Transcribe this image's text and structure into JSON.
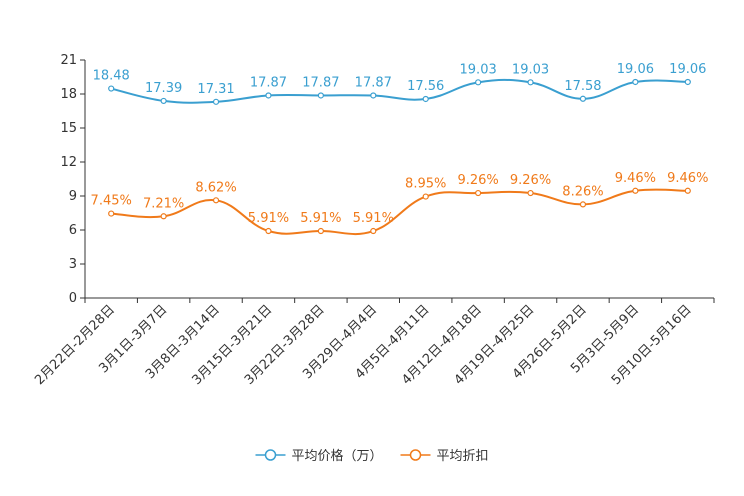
{
  "chart_data": {
    "type": "line",
    "title": "",
    "xlabel": "",
    "ylabel": "",
    "ylim": [
      0,
      21
    ],
    "yticks": [
      0,
      3,
      6,
      9,
      12,
      15,
      18,
      21
    ],
    "ytick_labels": [
      "0",
      "3",
      "6",
      "9",
      "12",
      "15",
      "18",
      "21"
    ],
    "grid": false,
    "legend_position": "bottom-center",
    "categories": [
      "2月22日-2月28日",
      "3月1日-3月7日",
      "3月8日-3月14日",
      "3月15日-3月21日",
      "3月22日-3月28日",
      "3月29日-4月4日",
      "4月5日-4月11日",
      "4月12日-4月18日",
      "4月19日-4月25日",
      "4月26日-5月2日",
      "5月3日-5月9日",
      "5月10日-5月16日"
    ],
    "series": [
      {
        "name": "平均价格（万）",
        "color": "#3a9fd0",
        "values": [
          18.48,
          17.39,
          17.31,
          17.87,
          17.87,
          17.87,
          17.56,
          19.03,
          19.03,
          17.58,
          19.06,
          19.06
        ],
        "labels": [
          "18.48",
          "17.39",
          "17.31",
          "17.87",
          "17.87",
          "17.87",
          "17.56",
          "19.03",
          "19.03",
          "17.58",
          "19.06",
          "19.06"
        ]
      },
      {
        "name": "平均折扣",
        "color": "#f07a1a",
        "values": [
          7.45,
          7.21,
          8.62,
          5.91,
          5.91,
          5.91,
          8.95,
          9.26,
          9.26,
          8.26,
          9.46,
          9.46
        ],
        "labels": [
          "7.45%",
          "7.21%",
          "8.62%",
          "5.91%",
          "5.91%",
          "5.91%",
          "8.95%",
          "9.26%",
          "9.26%",
          "8.26%",
          "9.46%",
          "9.46%"
        ]
      }
    ]
  }
}
